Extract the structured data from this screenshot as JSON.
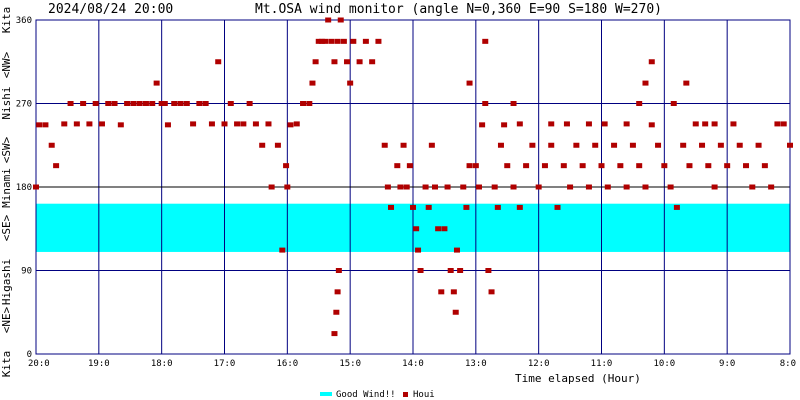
{
  "header": {
    "timestamp": "2024/08/24 20:00",
    "title": "Mt.OSA wind monitor (angle N=0,360 E=90 S=180 W=270)"
  },
  "left_labels": [
    "Kita",
    "<NE>",
    "Higashi",
    "<SE>",
    "Minami",
    "<SW>",
    "Nishi",
    "<NW>",
    "Kita"
  ],
  "colors": {
    "background": "#ffffff",
    "grid": "#000080",
    "good_band": "#00ffff",
    "series": "#b00000",
    "text": "#000000"
  },
  "legend": {
    "good_wind": "Good Wind!!",
    "houi": "Houi"
  },
  "chart_data": {
    "type": "scatter",
    "xlabel": "Time elapsed (Hour)",
    "ylabel": "",
    "x_ticks": [
      "20:0",
      "19:0",
      "18:0",
      "17:0",
      "16:0",
      "15:0",
      "14:0",
      "13:0",
      "12:0",
      "11:0",
      "10:0",
      "9:0",
      "8:0"
    ],
    "x_range_hours_ago": [
      0,
      12
    ],
    "ylim": [
      0,
      360
    ],
    "y_ticks": [
      0,
      90,
      180,
      270,
      360
    ],
    "good_wind_band": [
      110,
      162
    ],
    "series": [
      {
        "name": "Houi",
        "points": [
          [
            0.0,
            180
          ],
          [
            0.05,
            247
          ],
          [
            0.15,
            247
          ],
          [
            0.25,
            225
          ],
          [
            0.32,
            203
          ],
          [
            0.45,
            248
          ],
          [
            0.55,
            270
          ],
          [
            0.65,
            248
          ],
          [
            0.75,
            270
          ],
          [
            0.85,
            248
          ],
          [
            0.95,
            270
          ],
          [
            1.05,
            248
          ],
          [
            1.15,
            270
          ],
          [
            1.25,
            270
          ],
          [
            1.35,
            247
          ],
          [
            1.45,
            270
          ],
          [
            1.55,
            270
          ],
          [
            1.65,
            270
          ],
          [
            1.75,
            270
          ],
          [
            1.85,
            270
          ],
          [
            1.92,
            292
          ],
          [
            2.0,
            270
          ],
          [
            2.05,
            270
          ],
          [
            2.1,
            247
          ],
          [
            2.2,
            270
          ],
          [
            2.3,
            270
          ],
          [
            2.4,
            270
          ],
          [
            2.5,
            248
          ],
          [
            2.6,
            270
          ],
          [
            2.7,
            270
          ],
          [
            2.8,
            248
          ],
          [
            2.9,
            315
          ],
          [
            3.0,
            248
          ],
          [
            3.1,
            270
          ],
          [
            3.2,
            248
          ],
          [
            3.3,
            248
          ],
          [
            3.4,
            270
          ],
          [
            3.5,
            248
          ],
          [
            3.6,
            225
          ],
          [
            3.7,
            248
          ],
          [
            3.75,
            180
          ],
          [
            3.85,
            225
          ],
          [
            3.92,
            112
          ],
          [
            3.98,
            203
          ],
          [
            4.0,
            180
          ],
          [
            4.05,
            247
          ],
          [
            4.15,
            248
          ],
          [
            4.25,
            270
          ],
          [
            4.35,
            270
          ],
          [
            4.4,
            292
          ],
          [
            4.45,
            315
          ],
          [
            4.5,
            337
          ],
          [
            4.55,
            337
          ],
          [
            4.6,
            337
          ],
          [
            4.65,
            360
          ],
          [
            4.7,
            337
          ],
          [
            4.75,
            315
          ],
          [
            4.8,
            337
          ],
          [
            4.85,
            360
          ],
          [
            4.9,
            337
          ],
          [
            4.95,
            315
          ],
          [
            5.0,
            292
          ],
          [
            5.05,
            337
          ],
          [
            5.15,
            315
          ],
          [
            5.25,
            337
          ],
          [
            5.35,
            315
          ],
          [
            5.45,
            337
          ],
          [
            4.75,
            22
          ],
          [
            4.78,
            45
          ],
          [
            4.8,
            67
          ],
          [
            4.82,
            90
          ],
          [
            5.55,
            225
          ],
          [
            5.6,
            180
          ],
          [
            5.65,
            158
          ],
          [
            5.75,
            203
          ],
          [
            5.8,
            180
          ],
          [
            5.85,
            225
          ],
          [
            5.9,
            180
          ],
          [
            5.95,
            203
          ],
          [
            6.0,
            158
          ],
          [
            6.05,
            135
          ],
          [
            6.08,
            112
          ],
          [
            6.12,
            90
          ],
          [
            6.2,
            180
          ],
          [
            6.25,
            158
          ],
          [
            6.3,
            225
          ],
          [
            6.35,
            180
          ],
          [
            6.4,
            135
          ],
          [
            6.45,
            67
          ],
          [
            6.5,
            135
          ],
          [
            6.55,
            180
          ],
          [
            6.6,
            90
          ],
          [
            6.65,
            67
          ],
          [
            6.68,
            45
          ],
          [
            6.7,
            112
          ],
          [
            6.75,
            90
          ],
          [
            6.8,
            180
          ],
          [
            6.85,
            158
          ],
          [
            6.9,
            203
          ],
          [
            7.0,
            203
          ],
          [
            7.05,
            180
          ],
          [
            7.1,
            247
          ],
          [
            7.15,
            270
          ],
          [
            7.2,
            90
          ],
          [
            7.25,
            67
          ],
          [
            7.3,
            180
          ],
          [
            7.35,
            158
          ],
          [
            7.4,
            225
          ],
          [
            7.45,
            247
          ],
          [
            7.5,
            203
          ],
          [
            7.6,
            180
          ],
          [
            7.7,
            158
          ],
          [
            7.8,
            203
          ],
          [
            7.9,
            225
          ],
          [
            8.0,
            180
          ],
          [
            8.1,
            203
          ],
          [
            8.2,
            225
          ],
          [
            8.3,
            158
          ],
          [
            8.4,
            203
          ],
          [
            8.5,
            180
          ],
          [
            8.6,
            225
          ],
          [
            8.7,
            203
          ],
          [
            8.8,
            180
          ],
          [
            8.9,
            225
          ],
          [
            9.0,
            203
          ],
          [
            9.1,
            180
          ],
          [
            9.2,
            225
          ],
          [
            9.3,
            203
          ],
          [
            9.4,
            180
          ],
          [
            9.5,
            225
          ],
          [
            9.6,
            203
          ],
          [
            9.7,
            180
          ],
          [
            9.8,
            247
          ],
          [
            9.9,
            225
          ],
          [
            10.0,
            203
          ],
          [
            10.1,
            180
          ],
          [
            10.2,
            158
          ],
          [
            10.3,
            225
          ],
          [
            10.4,
            203
          ],
          [
            10.5,
            248
          ],
          [
            10.6,
            225
          ],
          [
            10.7,
            203
          ],
          [
            10.8,
            180
          ],
          [
            10.9,
            225
          ],
          [
            11.0,
            203
          ],
          [
            11.1,
            248
          ],
          [
            11.2,
            225
          ],
          [
            11.3,
            203
          ],
          [
            11.4,
            180
          ],
          [
            11.5,
            225
          ],
          [
            11.6,
            203
          ],
          [
            11.7,
            180
          ],
          [
            11.8,
            248
          ],
          [
            11.9,
            248
          ],
          [
            12.0,
            225
          ],
          [
            6.9,
            292
          ],
          [
            7.15,
            337
          ],
          [
            7.6,
            270
          ],
          [
            7.7,
            248
          ],
          [
            8.2,
            248
          ],
          [
            8.45,
            248
          ],
          [
            8.8,
            248
          ],
          [
            9.05,
            248
          ],
          [
            9.4,
            248
          ],
          [
            9.6,
            270
          ],
          [
            9.7,
            292
          ],
          [
            9.8,
            315
          ],
          [
            10.15,
            270
          ],
          [
            10.35,
            292
          ],
          [
            10.65,
            248
          ],
          [
            10.8,
            248
          ]
        ]
      }
    ]
  }
}
